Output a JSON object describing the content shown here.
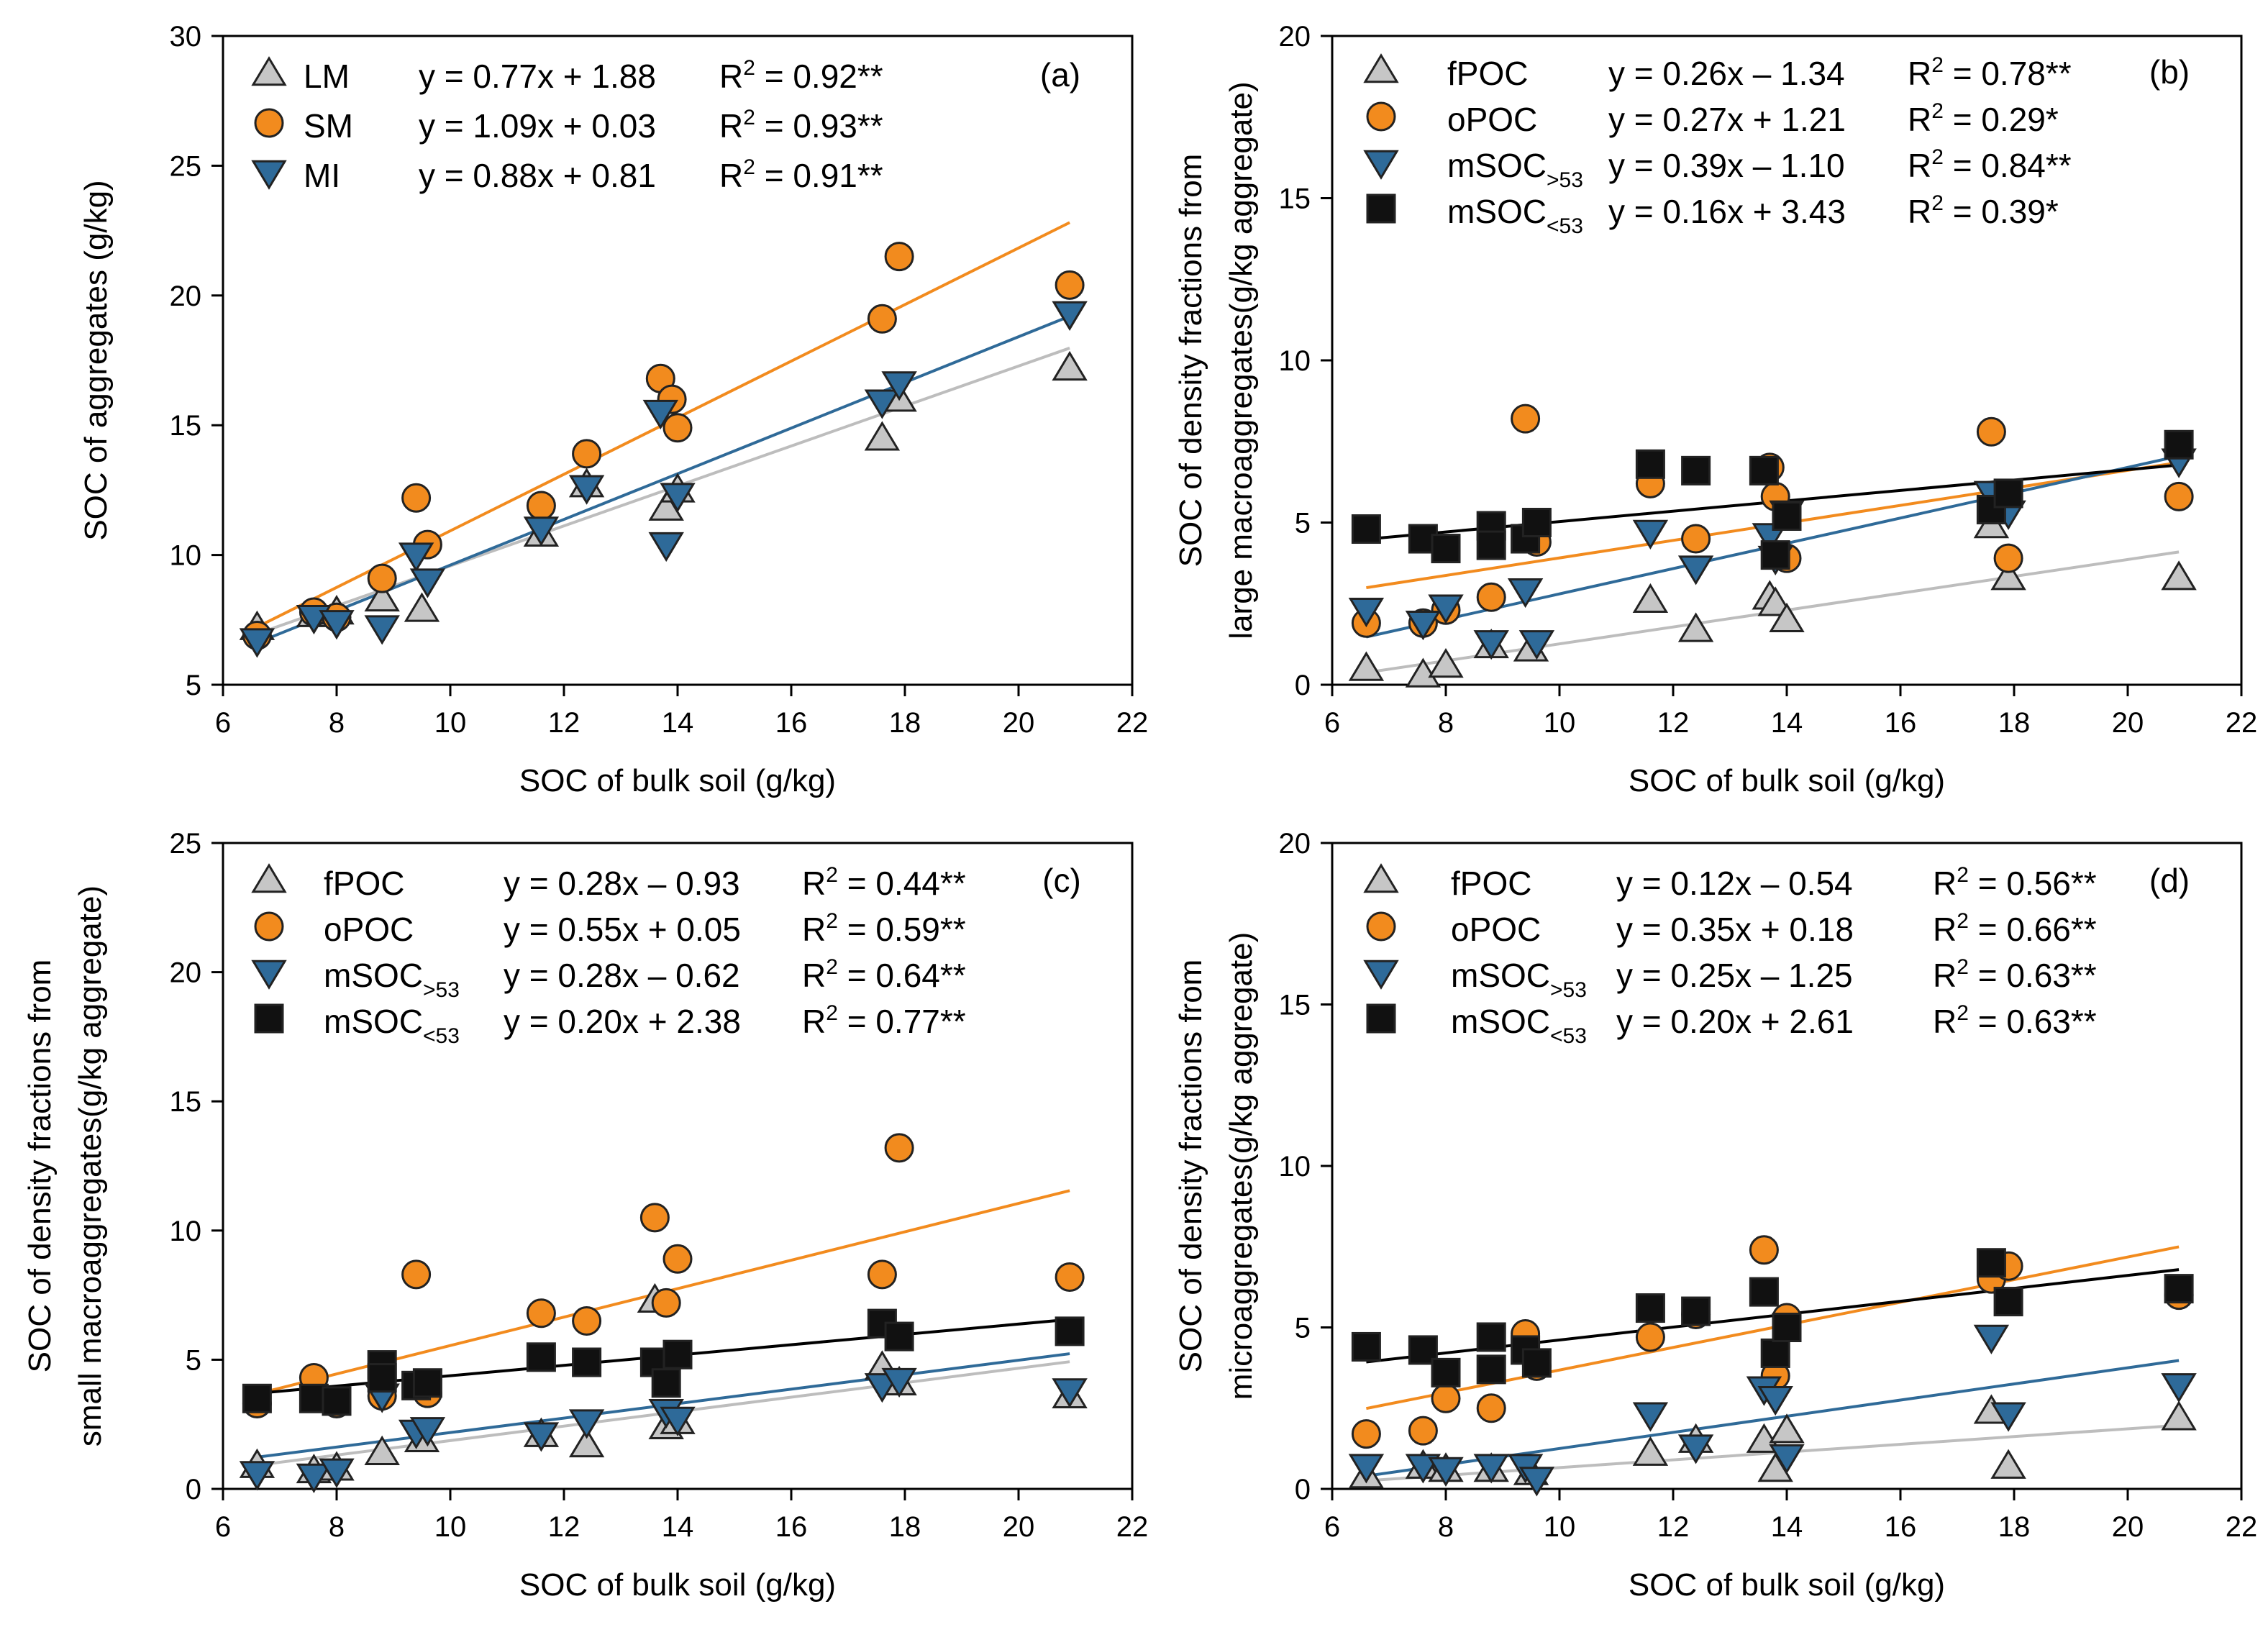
{
  "colors": {
    "LM": "#c6c6c6",
    "SM": "#f28b1e",
    "MI": "#2e6a99",
    "fPOC": "#c6c6c6",
    "oPOC": "#f28b1e",
    "mSOC_gt53": "#2e6a99",
    "mSOC_lt53": "#111111",
    "line_gray": "#bdbdbd",
    "line_orange": "#f28b1e",
    "line_blue": "#2f6a98",
    "line_black": "#000000"
  },
  "chart_data": [
    {
      "type": "scatter",
      "panel_label": "(a)",
      "xlabel": "SOC of bulk soil (g/kg)",
      "ylabel_lines": [
        "SOC of aggregates (g/kg)"
      ],
      "xlim": [
        6,
        22
      ],
      "ylim": [
        5,
        30
      ],
      "xticks": [
        "6",
        "8",
        "10",
        "12",
        "14",
        "16",
        "18",
        "20",
        "22"
      ],
      "yticks": [
        "5",
        "10",
        "15",
        "20",
        "25",
        "30"
      ],
      "series": [
        {
          "name": "LM",
          "sub": "",
          "marker": "triangle-up",
          "color_key": "LM",
          "line_color_key": "line_gray",
          "eq": "y = 0.77x + 1.88",
          "r2": "0.92**",
          "slope": 0.77,
          "intercept": 1.88,
          "x": [
            6.6,
            7.6,
            8.0,
            8.8,
            9.5,
            11.6,
            12.4,
            13.8,
            14.0,
            17.6,
            17.9,
            20.9
          ],
          "y": [
            7.2,
            7.7,
            7.8,
            8.3,
            7.9,
            10.8,
            12.7,
            11.8,
            12.5,
            14.5,
            16.0,
            17.2
          ]
        },
        {
          "name": "SM",
          "sub": "",
          "marker": "circle",
          "color_key": "SM",
          "line_color_key": "line_orange",
          "eq": "y = 1.09x + 0.03",
          "r2": "0.93**",
          "slope": 1.09,
          "intercept": 0.03,
          "x": [
            6.6,
            7.6,
            8.0,
            8.8,
            9.4,
            9.6,
            11.6,
            12.4,
            13.7,
            13.9,
            14.0,
            17.6,
            17.9,
            20.9
          ],
          "y": [
            6.9,
            7.8,
            7.6,
            9.1,
            12.2,
            10.4,
            11.9,
            13.9,
            16.8,
            16.0,
            14.9,
            19.1,
            21.5,
            20.4
          ]
        },
        {
          "name": "MI",
          "sub": "",
          "marker": "triangle-down",
          "color_key": "MI",
          "line_color_key": "line_blue",
          "eq": "y = 0.88x + 0.81",
          "r2": "0.91**",
          "slope": 0.88,
          "intercept": 0.81,
          "x": [
            6.6,
            7.6,
            8.0,
            8.8,
            9.4,
            9.6,
            11.6,
            12.4,
            13.7,
            13.8,
            14.0,
            17.6,
            17.9,
            20.9
          ],
          "y": [
            6.7,
            7.6,
            7.4,
            7.2,
            10.0,
            9.0,
            11.0,
            12.6,
            15.5,
            10.4,
            12.3,
            15.9,
            16.6,
            19.3
          ]
        }
      ]
    },
    {
      "type": "scatter",
      "panel_label": "(b)",
      "xlabel": "SOC of bulk soil (g/kg)",
      "ylabel_lines": [
        "SOC of density fractions from",
        "large macroaggregates(g/kg aggregate)"
      ],
      "xlim": [
        6,
        22
      ],
      "ylim": [
        0,
        20
      ],
      "xticks": [
        "6",
        "8",
        "10",
        "12",
        "14",
        "16",
        "18",
        "20",
        "22"
      ],
      "yticks": [
        "0",
        "5",
        "10",
        "15",
        "20"
      ],
      "series": [
        {
          "name": "fPOC",
          "sub": "",
          "marker": "triangle-up",
          "color_key": "fPOC",
          "line_color_key": "line_gray",
          "eq": "y = 0.26x –  1.34",
          "r2": "0.78**",
          "slope": 0.26,
          "intercept": -1.34,
          "x": [
            6.6,
            7.6,
            8.0,
            8.8,
            9.5,
            11.6,
            12.4,
            13.7,
            13.8,
            14.0,
            17.6,
            17.9,
            20.9
          ],
          "y": [
            0.5,
            0.3,
            0.6,
            1.2,
            1.1,
            2.6,
            1.7,
            2.7,
            2.5,
            2.0,
            4.9,
            3.3,
            3.3
          ]
        },
        {
          "name": "oPOC",
          "sub": "",
          "marker": "circle",
          "color_key": "oPOC",
          "line_color_key": "line_orange",
          "eq": "y = 0.27x + 1.21",
          "r2": "0.29*",
          "slope": 0.27,
          "intercept": 1.21,
          "x": [
            6.6,
            7.6,
            8.0,
            8.8,
            9.4,
            9.6,
            11.6,
            12.4,
            13.7,
            13.8,
            14.0,
            17.6,
            17.9,
            20.9
          ],
          "y": [
            1.9,
            1.9,
            2.3,
            2.7,
            8.2,
            4.4,
            6.2,
            4.5,
            6.7,
            5.8,
            3.9,
            7.8,
            3.9,
            5.8
          ]
        },
        {
          "name": "mSOC",
          "sub": ">53",
          "marker": "triangle-down",
          "color_key": "mSOC_gt53",
          "line_color_key": "line_blue",
          "eq": "y = 0.39x –  1.10",
          "r2": "0.84**",
          "slope": 0.39,
          "intercept": -1.1,
          "x": [
            6.6,
            7.6,
            8.0,
            8.8,
            9.4,
            9.6,
            11.6,
            12.4,
            13.7,
            13.8,
            14.0,
            17.6,
            17.9,
            20.9
          ],
          "y": [
            2.3,
            1.9,
            2.4,
            1.3,
            2.9,
            1.3,
            4.7,
            3.6,
            4.6,
            3.9,
            5.3,
            5.9,
            5.3,
            6.9
          ]
        },
        {
          "name": "mSOC",
          "sub": "<53",
          "marker": "square",
          "color_key": "mSOC_lt53",
          "line_color_key": "line_black",
          "eq": "y = 0.16x + 3.43",
          "r2": "0.39*",
          "slope": 0.16,
          "intercept": 3.43,
          "x": [
            6.6,
            7.6,
            8.0,
            8.8,
            8.8,
            9.4,
            9.6,
            11.6,
            12.4,
            13.6,
            13.8,
            14.0,
            17.6,
            17.9,
            20.9
          ],
          "y": [
            4.8,
            4.5,
            4.2,
            4.9,
            4.3,
            4.5,
            5.0,
            6.8,
            6.6,
            6.6,
            4.0,
            5.2,
            5.4,
            5.9,
            7.4
          ]
        }
      ]
    },
    {
      "type": "scatter",
      "panel_label": "(c)",
      "xlabel": "SOC of bulk soil (g/kg)",
      "ylabel_lines": [
        "SOC of density fractions from",
        "small macroaggregates(g/kg aggregate)"
      ],
      "xlim": [
        6,
        22
      ],
      "ylim": [
        0,
        25
      ],
      "xticks": [
        "6",
        "8",
        "10",
        "12",
        "14",
        "16",
        "18",
        "20",
        "22"
      ],
      "yticks": [
        "0",
        "5",
        "10",
        "15",
        "20",
        "25"
      ],
      "series": [
        {
          "name": "fPOC",
          "sub": "",
          "marker": "triangle-up",
          "color_key": "fPOC",
          "line_color_key": "line_gray",
          "eq": "y = 0.28x –  0.93",
          "r2": "0.44**",
          "slope": 0.28,
          "intercept": -0.93,
          "x": [
            6.6,
            7.6,
            8.0,
            8.8,
            9.5,
            11.6,
            12.4,
            13.6,
            13.8,
            14.0,
            17.6,
            17.9,
            20.9
          ],
          "y": [
            0.9,
            0.7,
            0.8,
            1.4,
            1.9,
            2.1,
            1.7,
            7.3,
            2.4,
            2.6,
            4.7,
            4.1,
            3.6
          ]
        },
        {
          "name": "oPOC",
          "sub": "",
          "marker": "circle",
          "color_key": "oPOC",
          "line_color_key": "line_orange",
          "eq": "y = 0.55x + 0.05",
          "r2": "0.59**",
          "slope": 0.55,
          "intercept": 0.05,
          "x": [
            6.6,
            7.6,
            8.0,
            8.8,
            9.4,
            9.6,
            11.6,
            12.4,
            13.6,
            13.8,
            14.0,
            17.6,
            17.9,
            20.9
          ],
          "y": [
            3.3,
            4.3,
            3.3,
            3.6,
            8.3,
            3.7,
            6.8,
            6.5,
            10.5,
            7.2,
            8.9,
            8.3,
            13.2,
            8.2
          ]
        },
        {
          "name": "mSOC",
          "sub": ">53",
          "marker": "triangle-down",
          "color_key": "mSOC_gt53",
          "line_color_key": "line_blue",
          "eq": "y = 0.28x –  0.62",
          "r2": "0.64**",
          "slope": 0.28,
          "intercept": -0.62,
          "x": [
            6.6,
            7.6,
            8.0,
            8.8,
            9.4,
            9.6,
            11.6,
            12.4,
            13.7,
            13.8,
            14.0,
            17.6,
            17.9,
            20.9
          ],
          "y": [
            0.6,
            0.5,
            0.7,
            3.6,
            2.2,
            2.3,
            2.1,
            2.6,
            4.7,
            3.0,
            2.7,
            4.0,
            4.2,
            3.8
          ]
        },
        {
          "name": "mSOC",
          "sub": "<53",
          "marker": "square",
          "color_key": "mSOC_lt53",
          "line_color_key": "line_black",
          "eq": "y = 0.20x + 2.38",
          "r2": "0.77**",
          "slope": 0.2,
          "intercept": 2.38,
          "x": [
            6.6,
            7.6,
            8.0,
            8.8,
            8.8,
            9.4,
            9.6,
            11.6,
            12.4,
            13.6,
            13.8,
            14.0,
            17.6,
            17.9,
            20.9
          ],
          "y": [
            3.5,
            3.5,
            3.4,
            4.8,
            4.3,
            4.0,
            4.1,
            5.1,
            4.9,
            4.9,
            4.1,
            5.2,
            6.4,
            5.9,
            6.1
          ]
        }
      ]
    },
    {
      "type": "scatter",
      "panel_label": "(d)",
      "xlabel": "SOC of bulk soil (g/kg)",
      "ylabel_lines": [
        "SOC of density fractions from",
        "microaggregates(g/kg aggregate)"
      ],
      "xlim": [
        6,
        22
      ],
      "ylim": [
        0,
        20
      ],
      "xticks": [
        "6",
        "8",
        "10",
        "12",
        "14",
        "16",
        "18",
        "20",
        "22"
      ],
      "yticks": [
        "0",
        "5",
        "10",
        "15",
        "20"
      ],
      "series": [
        {
          "name": "fPOC",
          "sub": "",
          "marker": "triangle-up",
          "color_key": "fPOC",
          "line_color_key": "line_gray",
          "eq": "y = 0.12x –  0.54",
          "r2": "0.56**",
          "slope": 0.12,
          "intercept": -0.54,
          "x": [
            6.6,
            7.6,
            8.0,
            8.8,
            9.5,
            11.6,
            12.4,
            13.6,
            13.8,
            14.0,
            17.6,
            17.9,
            20.9
          ],
          "y": [
            0.4,
            0.7,
            0.6,
            0.6,
            0.5,
            1.1,
            1.5,
            1.5,
            0.6,
            1.8,
            2.4,
            0.7,
            2.2
          ]
        },
        {
          "name": "oPOC",
          "sub": "",
          "marker": "circle",
          "color_key": "oPOC",
          "line_color_key": "line_orange",
          "eq": "y = 0.35x + 0.18",
          "r2": "0.66**",
          "slope": 0.35,
          "intercept": 0.18,
          "x": [
            6.6,
            7.6,
            8.0,
            8.8,
            9.4,
            9.6,
            11.6,
            12.4,
            13.6,
            13.8,
            14.0,
            17.6,
            17.9,
            20.9
          ],
          "y": [
            1.7,
            1.8,
            2.8,
            2.5,
            4.8,
            3.8,
            4.7,
            5.4,
            7.4,
            3.5,
            5.3,
            6.5,
            6.9,
            6.0
          ]
        },
        {
          "name": "mSOC",
          "sub": ">53",
          "marker": "triangle-down",
          "color_key": "mSOC_gt53",
          "line_color_key": "line_blue",
          "eq": "y = 0.25x –  1.25",
          "r2": "0.63**",
          "slope": 0.25,
          "intercept": -1.25,
          "x": [
            6.6,
            7.6,
            8.0,
            8.8,
            9.4,
            9.6,
            11.6,
            12.4,
            13.6,
            13.8,
            14.0,
            17.6,
            17.9,
            20.9
          ],
          "y": [
            0.7,
            0.7,
            0.6,
            0.7,
            0.7,
            0.3,
            2.3,
            1.3,
            3.1,
            2.8,
            1.0,
            4.7,
            2.3,
            3.2
          ]
        },
        {
          "name": "mSOC",
          "sub": "<53",
          "marker": "square",
          "color_key": "mSOC_lt53",
          "line_color_key": "line_black",
          "eq": "y = 0.20x + 2.61",
          "r2": "0.63**",
          "slope": 0.2,
          "intercept": 2.61,
          "x": [
            6.6,
            7.6,
            8.0,
            8.8,
            8.8,
            9.4,
            9.6,
            11.6,
            12.4,
            13.6,
            13.8,
            14.0,
            17.6,
            17.9,
            20.9
          ],
          "y": [
            4.4,
            4.3,
            3.6,
            4.7,
            3.7,
            4.3,
            3.9,
            5.6,
            5.5,
            6.1,
            4.2,
            5.0,
            7.0,
            5.8,
            6.2
          ]
        }
      ]
    }
  ]
}
